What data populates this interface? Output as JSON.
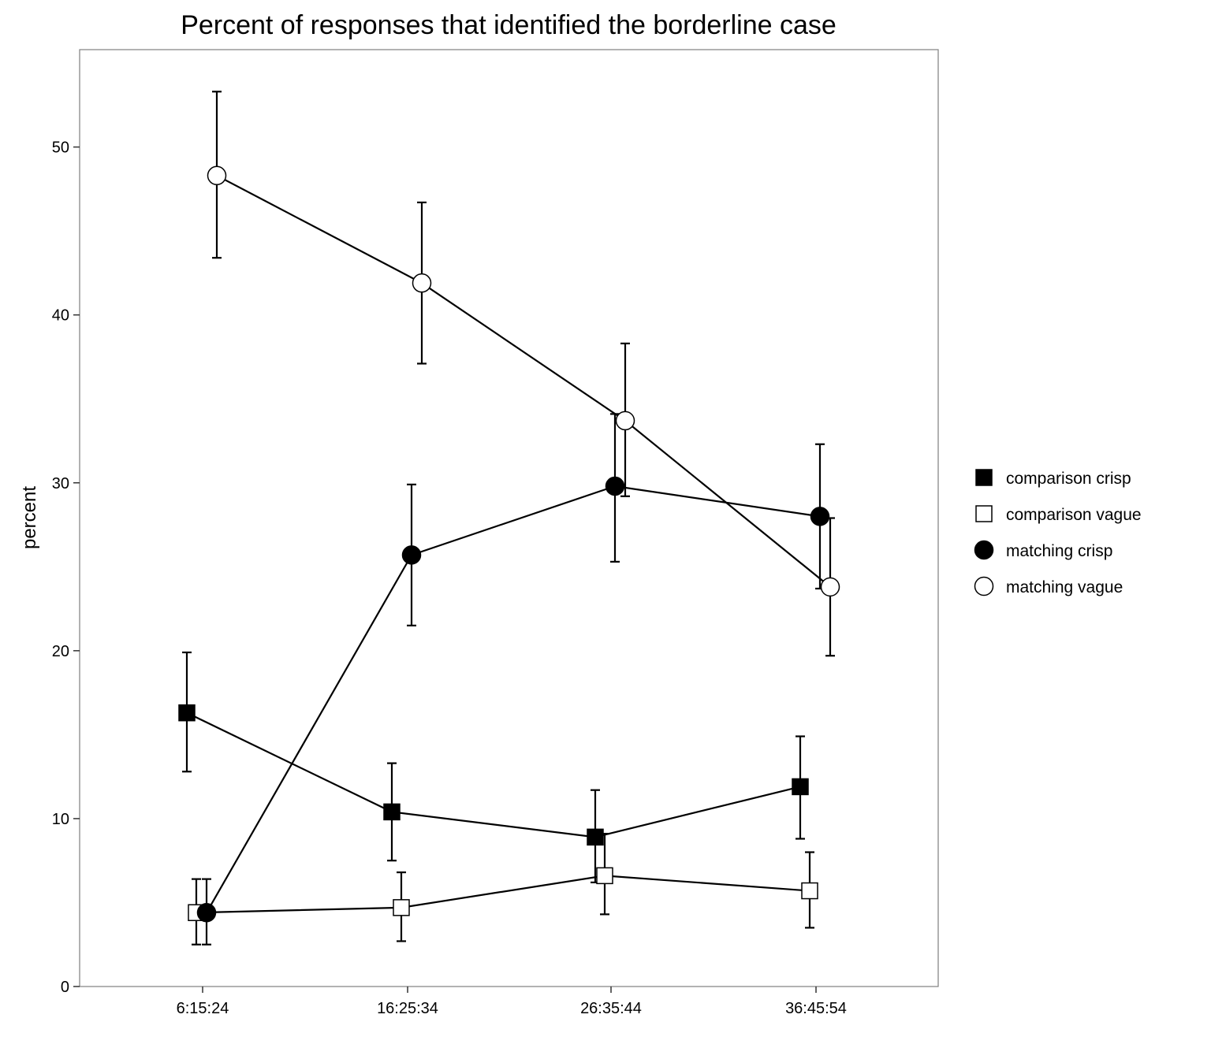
{
  "chart_data": {
    "type": "line",
    "title": "Percent of responses that identified the borderline case",
    "xlabel": "",
    "ylabel": "percent",
    "categories": [
      "6:15:24",
      "16:25:34",
      "26:35:44",
      "36:45:54"
    ],
    "ylim": [
      0,
      55.8
    ],
    "yticks": [
      0,
      10,
      20,
      30,
      40,
      50
    ],
    "grid": false,
    "legend_position": "right",
    "series": [
      {
        "name": "comparison crisp",
        "marker": "square",
        "fill": "#000000",
        "values": [
          16.3,
          10.4,
          8.9,
          11.9
        ],
        "err_low": [
          12.8,
          7.5,
          6.2,
          8.8
        ],
        "err_high": [
          19.9,
          13.3,
          11.7,
          14.9
        ]
      },
      {
        "name": "comparison vague",
        "marker": "square",
        "fill": "#ffffff",
        "values": [
          4.4,
          4.7,
          6.6,
          5.7
        ],
        "err_low": [
          2.5,
          2.7,
          4.3,
          3.5
        ],
        "err_high": [
          6.4,
          6.8,
          9.1,
          8.0
        ]
      },
      {
        "name": "matching crisp",
        "marker": "circle",
        "fill": "#000000",
        "values": [
          4.4,
          25.7,
          29.8,
          28.0
        ],
        "err_low": [
          2.5,
          21.5,
          25.3,
          23.7
        ],
        "err_high": [
          6.4,
          29.9,
          34.1,
          32.3
        ]
      },
      {
        "name": "matching vague",
        "marker": "circle",
        "fill": "#ffffff",
        "values": [
          48.3,
          41.9,
          33.7,
          23.8
        ],
        "err_low": [
          43.4,
          37.1,
          29.2,
          19.7
        ],
        "err_high": [
          53.3,
          46.7,
          38.3,
          27.9
        ]
      }
    ]
  }
}
